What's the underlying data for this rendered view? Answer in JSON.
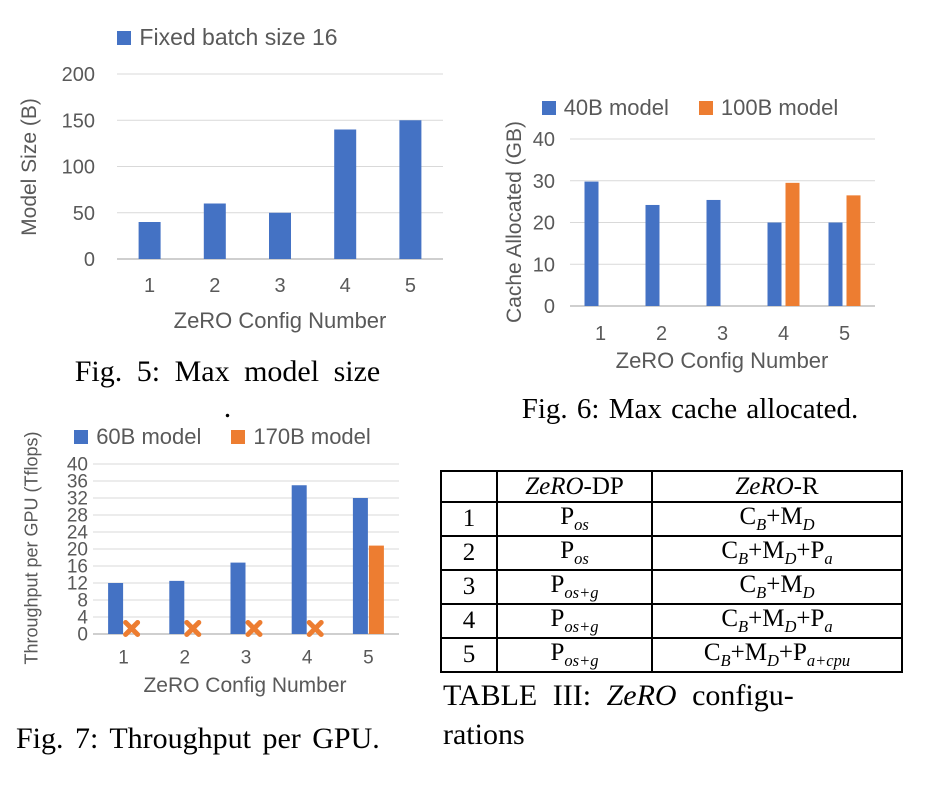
{
  "palette": {
    "blue": "#4472C4",
    "orange": "#ED7D31",
    "chart_text": "#595959",
    "gridline": "#D9D9D9",
    "axis_line": "#BFBFBF",
    "caption_text": "#000000"
  },
  "chart_data": [
    {
      "id": "fig5",
      "type": "bar",
      "categories": [
        "1",
        "2",
        "3",
        "4",
        "5"
      ],
      "series": [
        {
          "name": "Fixed batch size 16",
          "color": "blue",
          "values": [
            40,
            60,
            50,
            140,
            150
          ]
        }
      ],
      "xlabel": "ZeRO Config Number",
      "ylabel": "Model Size (B)",
      "ylim": [
        0,
        200
      ],
      "yticks": [
        0,
        50,
        100,
        150,
        200
      ],
      "legend_position": "top",
      "grid": true
    },
    {
      "id": "fig6",
      "type": "bar",
      "categories": [
        "1",
        "2",
        "3",
        "4",
        "5"
      ],
      "series": [
        {
          "name": "40B model",
          "color": "blue",
          "values": [
            29.8,
            24.2,
            25.4,
            20,
            20
          ]
        },
        {
          "name": "100B model",
          "color": "orange",
          "values": [
            null,
            null,
            null,
            29.5,
            26.5
          ]
        }
      ],
      "xlabel": "ZeRO Config Number",
      "ylabel": "Cache Allocated (GB)",
      "ylim": [
        0,
        40
      ],
      "yticks": [
        0,
        10,
        20,
        30,
        40
      ],
      "legend_position": "top",
      "grid": true
    },
    {
      "id": "fig7",
      "type": "bar",
      "categories": [
        "1",
        "2",
        "3",
        "4",
        "5"
      ],
      "series": [
        {
          "name": "60B model",
          "color": "blue",
          "values": [
            12,
            12.5,
            16.8,
            35,
            32
          ]
        },
        {
          "name": "170B model",
          "color": "orange",
          "values": [
            null,
            null,
            null,
            null,
            20.8
          ],
          "x_markers": [
            1.3,
            1.3,
            1.3,
            1.3,
            null
          ]
        }
      ],
      "xlabel": "ZeRO Config Number",
      "ylabel": "Throughput per GPU (Tflops)",
      "ylim": [
        0,
        40
      ],
      "yticks": [
        0,
        4,
        8,
        12,
        16,
        20,
        24,
        28,
        32,
        36,
        40
      ],
      "legend_position": "top",
      "grid": true
    }
  ],
  "captions": {
    "fig5_line1": "Fig. 5: Max model size",
    "fig5_line2": ".",
    "fig6": "Fig. 6: Max cache allocated.",
    "fig7": "Fig. 7: Throughput per GPU.",
    "table": {
      "line1": [
        {
          "text": "TABLE III: "
        },
        {
          "text": "ZeRO",
          "italic": true
        },
        {
          "text": " configu-"
        }
      ],
      "line2": "rations"
    }
  },
  "table": {
    "headers": [
      [
        {
          "text": ""
        }
      ],
      [
        {
          "text": "ZeRO",
          "italic": true
        },
        {
          "text": "-DP"
        }
      ],
      [
        {
          "text": "ZeRO",
          "italic": true
        },
        {
          "text": "-R"
        }
      ]
    ],
    "rows": [
      {
        "config": "1",
        "zero_dp": "P_{os}",
        "zero_r": "C_{B}+M_{D}"
      },
      {
        "config": "2",
        "zero_dp": "P_{os}",
        "zero_r": "C_{B}+M_{D}+P_{a}"
      },
      {
        "config": "3",
        "zero_dp": "P_{os+g}",
        "zero_r": "C_{B}+M_{D}"
      },
      {
        "config": "4",
        "zero_dp": "P_{os+g}",
        "zero_r": "C_{B}+M_{D}+P_{a}"
      },
      {
        "config": "5",
        "zero_dp": "P_{os+g}",
        "zero_r": "C_{B}+M_{D}+P_{a+cpu}"
      }
    ]
  }
}
